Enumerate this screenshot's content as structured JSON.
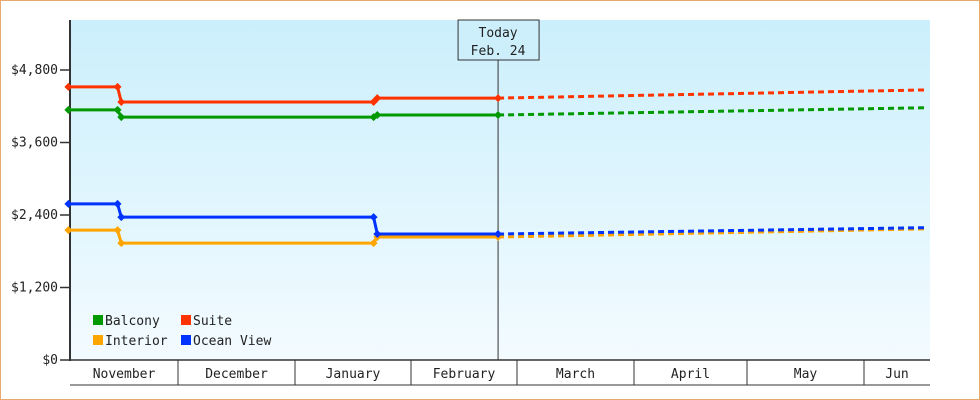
{
  "chart_data": {
    "type": "line",
    "title": "",
    "xlabel": "",
    "ylabel": "",
    "ylim": [
      0,
      5800
    ],
    "y_ticks": [
      "$0",
      "$1,200",
      "$2,400",
      "$3,600",
      "$4,800"
    ],
    "y_tick_values": [
      0,
      1200,
      2400,
      3600,
      4800
    ],
    "x_ticks": [
      "November",
      "December",
      "January",
      "February",
      "March",
      "April",
      "May",
      "Jun"
    ],
    "grid": false,
    "legend_placement": "bottom-left",
    "today_marker": {
      "line1": "Today",
      "line2": "Feb. 24",
      "date": "Feb 24"
    },
    "series": [
      {
        "name": "Balcony",
        "color": "#009900",
        "actual": [
          [
            "Nov 2",
            4140
          ],
          [
            "Nov 15",
            4140
          ],
          [
            "Nov 16",
            4020
          ],
          [
            "Jan 22",
            4020
          ],
          [
            "Jan 23",
            4055
          ],
          [
            "Feb 24",
            4055
          ]
        ],
        "projected": [
          [
            "Feb 24",
            4055
          ],
          [
            "Jun 17",
            4175
          ]
        ]
      },
      {
        "name": "Suite",
        "color": "#ff3300",
        "actual": [
          [
            "Nov 2",
            4520
          ],
          [
            "Nov 15",
            4520
          ],
          [
            "Nov 16",
            4270
          ],
          [
            "Jan 22",
            4270
          ],
          [
            "Jan 23",
            4335
          ],
          [
            "Feb 24",
            4335
          ]
        ],
        "projected": [
          [
            "Feb 24",
            4335
          ],
          [
            "Jun 17",
            4470
          ]
        ]
      },
      {
        "name": "Interior",
        "color": "#ffa500",
        "actual": [
          [
            "Nov 2",
            2150
          ],
          [
            "Nov 15",
            2150
          ],
          [
            "Nov 16",
            1935
          ],
          [
            "Jan 22",
            1935
          ],
          [
            "Jan 23",
            2035
          ],
          [
            "Feb 24",
            2035
          ]
        ],
        "projected": [
          [
            "Feb 24",
            2035
          ],
          [
            "Jun 17",
            2170
          ]
        ]
      },
      {
        "name": "Ocean View",
        "color": "#0033ff",
        "actual": [
          [
            "Nov 2",
            2585
          ],
          [
            "Nov 15",
            2585
          ],
          [
            "Nov 16",
            2365
          ],
          [
            "Jan 22",
            2365
          ],
          [
            "Jan 23",
            2085
          ],
          [
            "Feb 24",
            2085
          ]
        ],
        "projected": [
          [
            "Feb 24",
            2085
          ],
          [
            "Jun 17",
            2190
          ]
        ]
      }
    ]
  }
}
